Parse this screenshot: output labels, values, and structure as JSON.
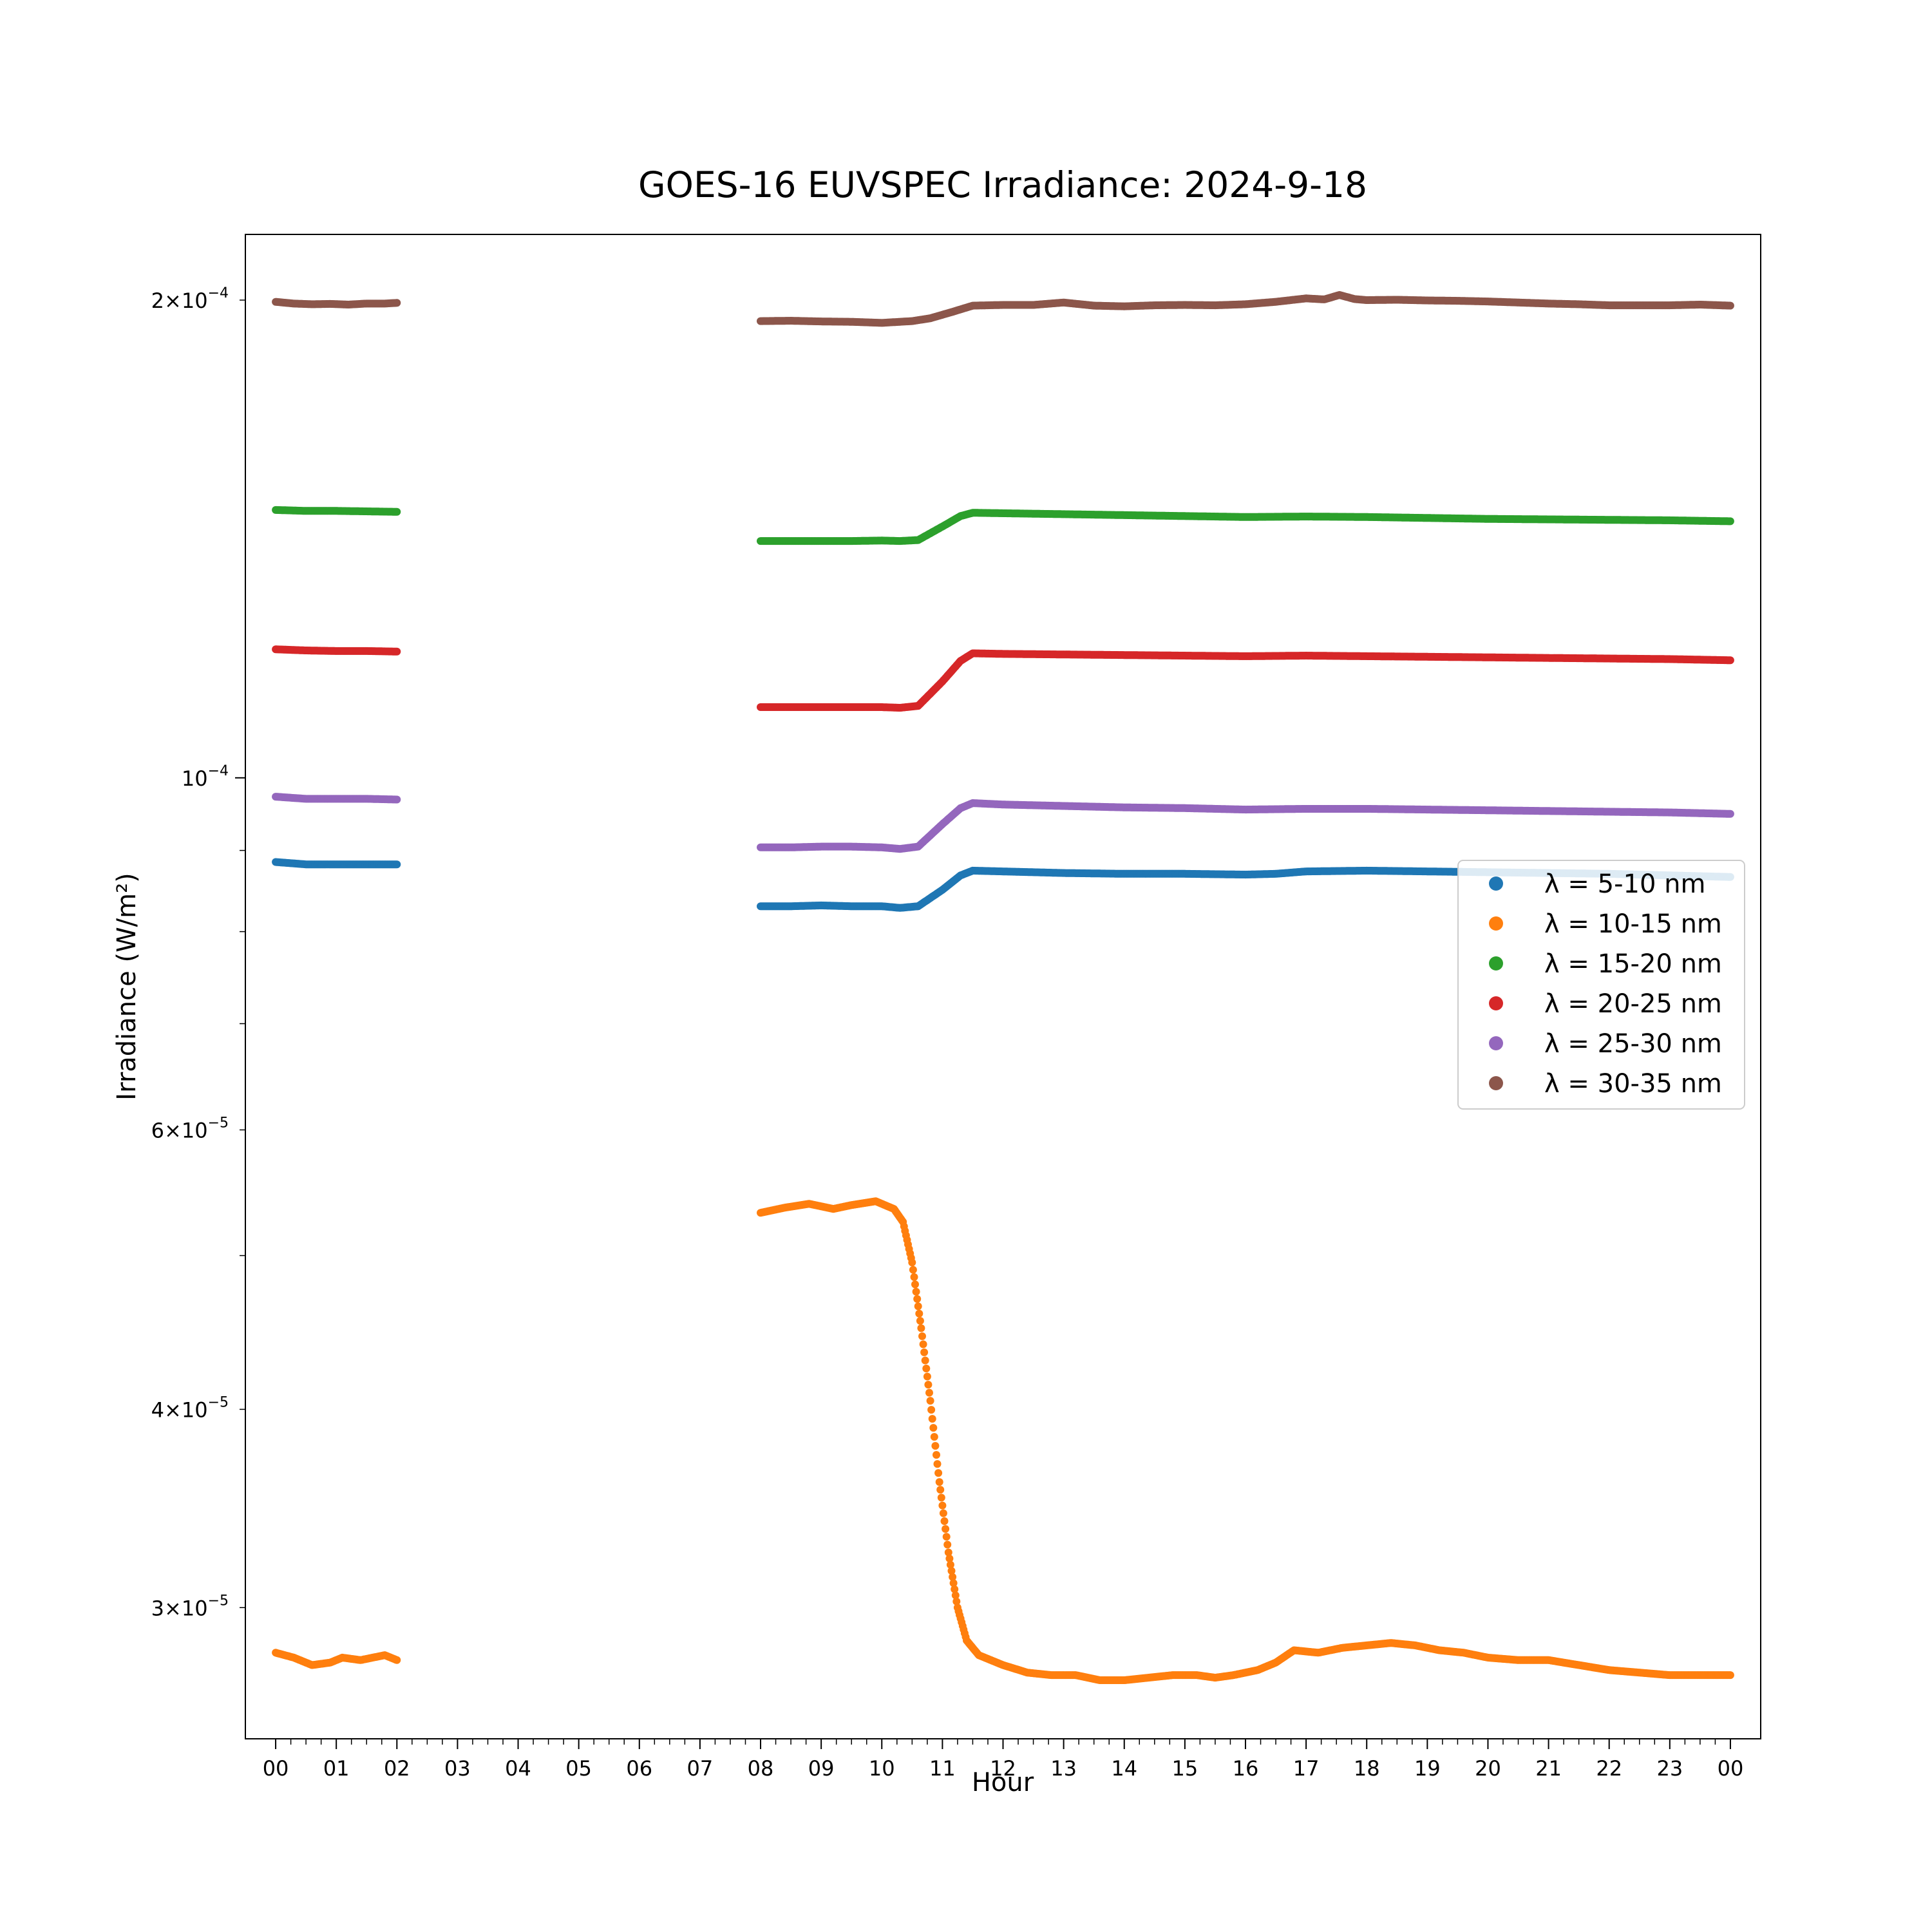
{
  "chart_data": {
    "type": "scatter",
    "title": "GOES-16 EUVSPEC Irradiance: 2024-9-18",
    "xlabel": "Hour",
    "ylabel": "Irradiance (W/m²)",
    "x_unit": "hour of day",
    "xlim": [
      -0.5,
      24.5
    ],
    "ylim": [
      2.48e-05,
      0.00022
    ],
    "yscale": "log",
    "grid": false,
    "legend_position": "center-right",
    "x_tick_labels": [
      "00",
      "01",
      "02",
      "03",
      "04",
      "05",
      "06",
      "07",
      "08",
      "09",
      "10",
      "11",
      "12",
      "13",
      "14",
      "15",
      "16",
      "17",
      "18",
      "19",
      "20",
      "21",
      "22",
      "23",
      "00"
    ],
    "y_major_ticks": [
      {
        "value": 0.0001,
        "label": "10",
        "exp": "−4"
      }
    ],
    "y_minor_ticks": [
      {
        "value": 0.0002,
        "mantissa": "2",
        "label": "10",
        "exp": "−4"
      },
      {
        "value": 6e-05,
        "mantissa": "6",
        "label": "10",
        "exp": "−5"
      },
      {
        "value": 4e-05,
        "mantissa": "4",
        "label": "10",
        "exp": "−5"
      },
      {
        "value": 3e-05,
        "mantissa": "3",
        "label": "10",
        "exp": "−5"
      },
      {
        "value": 9e-05,
        "mantissa": "",
        "label": "",
        "exp": ""
      },
      {
        "value": 8e-05,
        "mantissa": "",
        "label": "",
        "exp": ""
      },
      {
        "value": 7e-05,
        "mantissa": "",
        "label": "",
        "exp": ""
      },
      {
        "value": 5e-05,
        "mantissa": "",
        "label": "",
        "exp": ""
      }
    ],
    "series": [
      {
        "name": "λ = 5-10 nm",
        "color": "#1f77b4",
        "segments": [
          [
            [
              0,
              8.85e-05
            ],
            [
              0.5,
              8.82e-05
            ],
            [
              1,
              8.82e-05
            ],
            [
              1.5,
              8.82e-05
            ],
            [
              2,
              8.82e-05
            ]
          ],
          [
            [
              8,
              8.3e-05
            ],
            [
              8.5,
              8.3e-05
            ],
            [
              9,
              8.31e-05
            ],
            [
              9.5,
              8.3e-05
            ],
            [
              10,
              8.3e-05
            ],
            [
              10.3,
              8.28e-05
            ],
            [
              10.6,
              8.3e-05
            ],
            [
              11.0,
              8.5e-05
            ],
            [
              11.3,
              8.68e-05
            ],
            [
              11.5,
              8.74e-05
            ],
            [
              12,
              8.73e-05
            ],
            [
              13,
              8.71e-05
            ],
            [
              14,
              8.7e-05
            ],
            [
              15,
              8.7e-05
            ],
            [
              16,
              8.69e-05
            ],
            [
              16.5,
              8.7e-05
            ],
            [
              17,
              8.73e-05
            ],
            [
              18,
              8.74e-05
            ],
            [
              19,
              8.73e-05
            ],
            [
              20,
              8.72e-05
            ],
            [
              21,
              8.71e-05
            ],
            [
              22,
              8.7e-05
            ],
            [
              23,
              8.68e-05
            ],
            [
              24,
              8.66e-05
            ]
          ]
        ]
      },
      {
        "name": "λ = 10-15 nm",
        "color": "#ff7f0e",
        "segments": [
          [
            [
              0,
              2.81e-05
            ],
            [
              0.3,
              2.79e-05
            ],
            [
              0.6,
              2.76e-05
            ],
            [
              0.9,
              2.77e-05
            ],
            [
              1.1,
              2.79e-05
            ],
            [
              1.4,
              2.78e-05
            ],
            [
              1.6,
              2.79e-05
            ],
            [
              1.8,
              2.8e-05
            ],
            [
              2,
              2.78e-05
            ]
          ],
          [
            [
              8,
              5.32e-05
            ],
            [
              8.4,
              5.36e-05
            ],
            [
              8.8,
              5.39e-05
            ],
            [
              9.2,
              5.35e-05
            ],
            [
              9.5,
              5.38e-05
            ],
            [
              9.9,
              5.41e-05
            ],
            [
              10.2,
              5.35e-05
            ],
            [
              10.35,
              5.25e-05
            ],
            [
              10.5,
              4.95e-05
            ],
            [
              10.65,
              4.5e-05
            ],
            [
              10.8,
              4.05e-05
            ],
            [
              10.95,
              3.6e-05
            ],
            [
              11.1,
              3.25e-05
            ],
            [
              11.25,
              3e-05
            ],
            [
              11.4,
              2.86e-05
            ],
            [
              11.6,
              2.8e-05
            ],
            [
              12,
              2.76e-05
            ],
            [
              12.4,
              2.73e-05
            ],
            [
              12.8,
              2.72e-05
            ],
            [
              13.2,
              2.72e-05
            ],
            [
              13.6,
              2.7e-05
            ],
            [
              14,
              2.7e-05
            ],
            [
              14.4,
              2.71e-05
            ],
            [
              14.8,
              2.72e-05
            ],
            [
              15.2,
              2.72e-05
            ],
            [
              15.5,
              2.71e-05
            ],
            [
              15.8,
              2.72e-05
            ],
            [
              16.2,
              2.74e-05
            ],
            [
              16.5,
              2.77e-05
            ],
            [
              16.8,
              2.82e-05
            ],
            [
              17.2,
              2.81e-05
            ],
            [
              17.6,
              2.83e-05
            ],
            [
              18,
              2.84e-05
            ],
            [
              18.4,
              2.85e-05
            ],
            [
              18.8,
              2.84e-05
            ],
            [
              19.2,
              2.82e-05
            ],
            [
              19.6,
              2.81e-05
            ],
            [
              20,
              2.79e-05
            ],
            [
              20.5,
              2.78e-05
            ],
            [
              21,
              2.78e-05
            ],
            [
              21.5,
              2.76e-05
            ],
            [
              22,
              2.74e-05
            ],
            [
              22.5,
              2.73e-05
            ],
            [
              23,
              2.72e-05
            ],
            [
              23.5,
              2.72e-05
            ],
            [
              24,
              2.72e-05
            ]
          ]
        ]
      },
      {
        "name": "λ = 15-20 nm",
        "color": "#2ca02c",
        "segments": [
          [
            [
              0,
              0.0001475
            ],
            [
              0.5,
              0.0001473
            ],
            [
              1,
              0.0001473
            ],
            [
              1.5,
              0.0001472
            ],
            [
              2,
              0.0001471
            ]
          ],
          [
            [
              8,
              0.000141
            ],
            [
              8.5,
              0.000141
            ],
            [
              9,
              0.000141
            ],
            [
              9.5,
              0.000141
            ],
            [
              10,
              0.0001411
            ],
            [
              10.3,
              0.000141
            ],
            [
              10.6,
              0.0001412
            ],
            [
              11.0,
              0.000144
            ],
            [
              11.3,
              0.0001462
            ],
            [
              11.5,
              0.0001469
            ],
            [
              12,
              0.0001468
            ],
            [
              13,
              0.0001466
            ],
            [
              14,
              0.0001464
            ],
            [
              15,
              0.0001462
            ],
            [
              16,
              0.000146
            ],
            [
              17,
              0.0001461
            ],
            [
              18,
              0.000146
            ],
            [
              19,
              0.0001458
            ],
            [
              20,
              0.0001456
            ],
            [
              21,
              0.0001455
            ],
            [
              22,
              0.0001454
            ],
            [
              23,
              0.0001453
            ],
            [
              24,
              0.0001451
            ]
          ]
        ]
      },
      {
        "name": "λ = 20-25 nm",
        "color": "#d62728",
        "segments": [
          [
            [
              0,
              0.0001205
            ],
            [
              0.5,
              0.0001203
            ],
            [
              1,
              0.0001202
            ],
            [
              1.5,
              0.0001202
            ],
            [
              2,
              0.0001201
            ]
          ],
          [
            [
              8,
              0.0001108
            ],
            [
              8.5,
              0.0001108
            ],
            [
              9,
              0.0001108
            ],
            [
              9.5,
              0.0001108
            ],
            [
              10,
              0.0001108
            ],
            [
              10.3,
              0.0001107
            ],
            [
              10.6,
              0.000111
            ],
            [
              11.0,
              0.000115
            ],
            [
              11.3,
              0.0001185
            ],
            [
              11.5,
              0.0001198
            ],
            [
              12,
              0.0001197
            ],
            [
              13,
              0.0001196
            ],
            [
              14,
              0.0001195
            ],
            [
              15,
              0.0001194
            ],
            [
              16,
              0.0001193
            ],
            [
              17,
              0.0001194
            ],
            [
              18,
              0.0001193
            ],
            [
              19,
              0.0001192
            ],
            [
              20,
              0.0001191
            ],
            [
              21,
              0.000119
            ],
            [
              22,
              0.0001189
            ],
            [
              23,
              0.0001188
            ],
            [
              24,
              0.0001186
            ]
          ]
        ]
      },
      {
        "name": "λ = 25-30 nm",
        "color": "#9467bd",
        "segments": [
          [
            [
              0,
              9.73e-05
            ],
            [
              0.5,
              9.7e-05
            ],
            [
              1,
              9.7e-05
            ],
            [
              1.5,
              9.7e-05
            ],
            [
              2,
              9.69e-05
            ]
          ],
          [
            [
              8,
              9.04e-05
            ],
            [
              8.5,
              9.04e-05
            ],
            [
              9,
              9.05e-05
            ],
            [
              9.5,
              9.05e-05
            ],
            [
              10,
              9.04e-05
            ],
            [
              10.3,
              9.02e-05
            ],
            [
              10.6,
              9.05e-05
            ],
            [
              11.0,
              9.35e-05
            ],
            [
              11.3,
              9.57e-05
            ],
            [
              11.5,
              9.64e-05
            ],
            [
              12,
              9.62e-05
            ],
            [
              13,
              9.6e-05
            ],
            [
              14,
              9.58e-05
            ],
            [
              15,
              9.57e-05
            ],
            [
              16,
              9.55e-05
            ],
            [
              17,
              9.56e-05
            ],
            [
              18,
              9.56e-05
            ],
            [
              19,
              9.55e-05
            ],
            [
              20,
              9.54e-05
            ],
            [
              21,
              9.53e-05
            ],
            [
              22,
              9.52e-05
            ],
            [
              23,
              9.51e-05
            ],
            [
              24,
              9.49e-05
            ]
          ]
        ]
      },
      {
        "name": "λ = 30-35 nm",
        "color": "#8c564b",
        "segments": [
          [
            [
              0,
              0.0001995
            ],
            [
              0.3,
              0.000199
            ],
            [
              0.6,
              0.0001988
            ],
            [
              0.9,
              0.0001989
            ],
            [
              1.2,
              0.0001987
            ],
            [
              1.5,
              0.000199
            ],
            [
              1.8,
              0.000199
            ],
            [
              2,
              0.0001992
            ]
          ],
          [
            [
              8,
              0.000194
            ],
            [
              8.5,
              0.0001941
            ],
            [
              9,
              0.0001939
            ],
            [
              9.5,
              0.0001938
            ],
            [
              10,
              0.0001935
            ],
            [
              10.5,
              0.000194
            ],
            [
              10.8,
              0.0001948
            ],
            [
              11.2,
              0.0001968
            ],
            [
              11.5,
              0.0001984
            ],
            [
              12,
              0.0001986
            ],
            [
              12.5,
              0.0001986
            ],
            [
              13,
              0.0001993
            ],
            [
              13.5,
              0.0001984
            ],
            [
              14,
              0.0001982
            ],
            [
              14.5,
              0.0001985
            ],
            [
              15,
              0.0001986
            ],
            [
              15.5,
              0.0001985
            ],
            [
              16,
              0.0001988
            ],
            [
              16.5,
              0.0001995
            ],
            [
              17,
              0.0002005
            ],
            [
              17.3,
              0.0002002
            ],
            [
              17.55,
              0.0002015
            ],
            [
              17.8,
              0.0002003
            ],
            [
              18,
              0.0002
            ],
            [
              18.5,
              0.0002001
            ],
            [
              19,
              0.0001999
            ],
            [
              19.5,
              0.0001998
            ],
            [
              20,
              0.0001996
            ],
            [
              20.5,
              0.0001993
            ],
            [
              21,
              0.000199
            ],
            [
              21.5,
              0.0001988
            ],
            [
              22,
              0.0001985
            ],
            [
              22.5,
              0.0001985
            ],
            [
              23,
              0.0001985
            ],
            [
              23.5,
              0.0001987
            ],
            [
              24,
              0.0001984
            ]
          ]
        ]
      }
    ]
  }
}
